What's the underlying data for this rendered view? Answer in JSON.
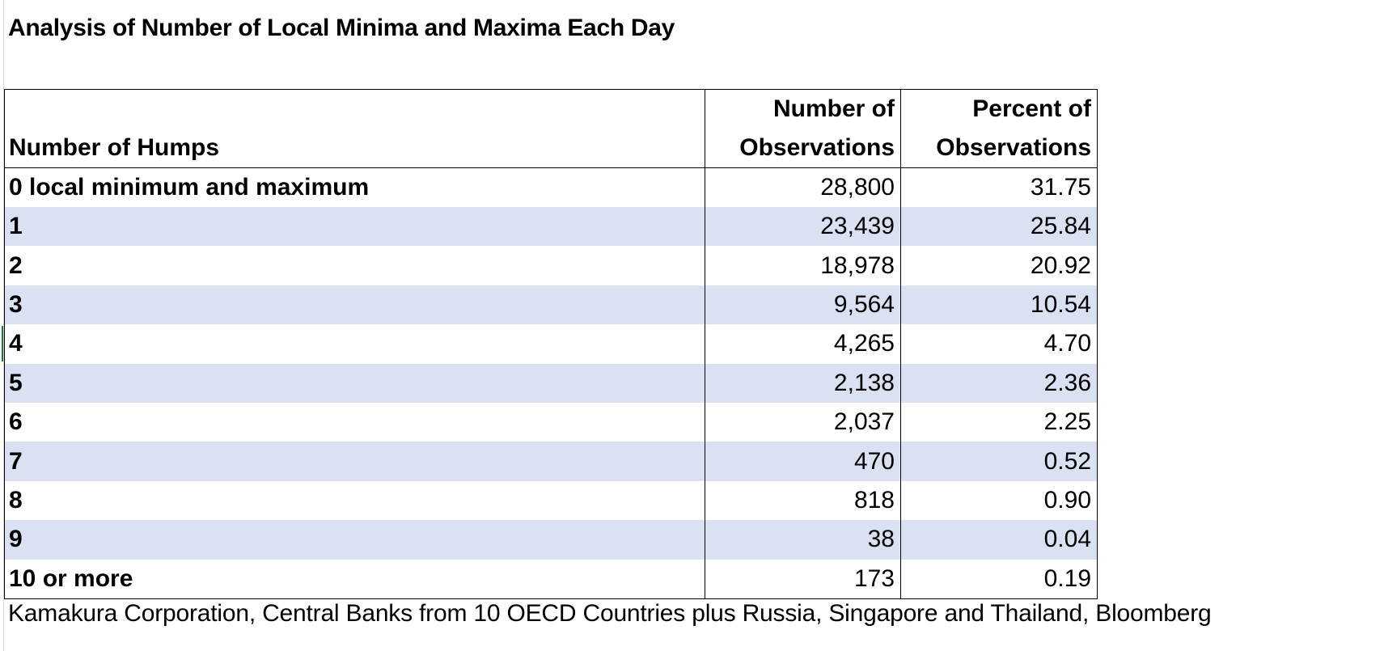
{
  "title": "Analysis of Number of Local Minima and Maxima Each Day",
  "table": {
    "headers": {
      "col1": "Number of Humps",
      "col2_line1": "Number of",
      "col2_line2": "Observations",
      "col3_line1": "Percent of",
      "col3_line2": "Observations"
    },
    "rows": [
      {
        "label": "0 local minimum and maximum",
        "count": "28,800",
        "percent": "31.75"
      },
      {
        "label": "1",
        "count": "23,439",
        "percent": "25.84"
      },
      {
        "label": "2",
        "count": "18,978",
        "percent": "20.92"
      },
      {
        "label": "3",
        "count": "9,564",
        "percent": "10.54"
      },
      {
        "label": "4",
        "count": "4,265",
        "percent": "4.70"
      },
      {
        "label": "5",
        "count": "2,138",
        "percent": "2.36"
      },
      {
        "label": "6",
        "count": "2,037",
        "percent": "2.25"
      },
      {
        "label": "7",
        "count": "470",
        "percent": "0.52"
      },
      {
        "label": "8",
        "count": "818",
        "percent": "0.90"
      },
      {
        "label": "9",
        "count": "38",
        "percent": "0.04"
      },
      {
        "label": "10 or more",
        "count": "173",
        "percent": "0.19"
      }
    ]
  },
  "source": "Kamakura Corporation, Central Banks from 10 OECD Countries plus Russia, Singapore and Thailand, Bloomberg",
  "colors": {
    "row_band": "#d9e1f2",
    "selection_accent": "#217346"
  }
}
